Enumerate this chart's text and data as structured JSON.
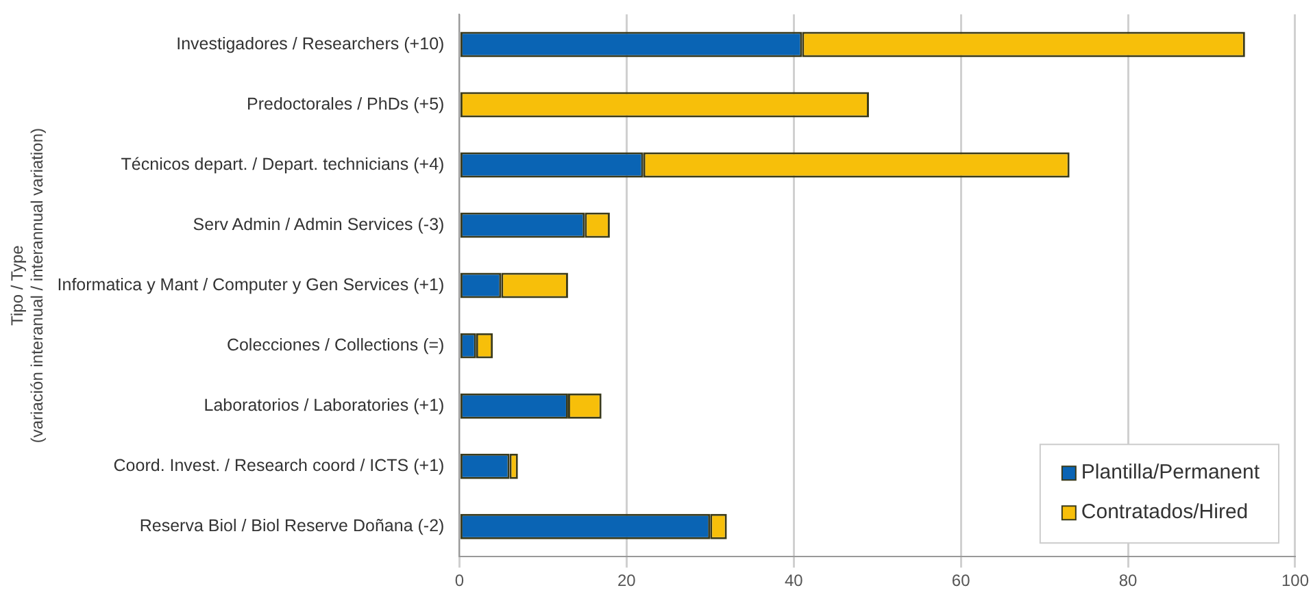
{
  "chart_data": {
    "type": "bar",
    "orientation": "horizontal",
    "stacked": true,
    "ylabel": "Tipo / Type\n(variación interanual / interannual variation)",
    "categories": [
      "Investigadores / Researchers (+10)",
      "Predoctorales / PhDs (+5)",
      "Técnicos depart. / Depart. technicians (+4)",
      "Serv Admin / Admin Services (-3)",
      "Informatica y Mant / Computer y Gen Services (+1)",
      "Colecciones / Collections (=)",
      "Laboratorios / Laboratories (+1)",
      "Coord. Invest. / Research coord / ICTS (+1)",
      "Reserva Biol / Biol Reserve Doñana (-2)"
    ],
    "series": [
      {
        "name": "Plantilla/Permanent",
        "color": "#0a64b4",
        "values": [
          41,
          0,
          22,
          15,
          5,
          2,
          13,
          6,
          30
        ]
      },
      {
        "name": "Contratados/Hired",
        "color": "#f7bf0a",
        "values": [
          53,
          49,
          51,
          3,
          8,
          2,
          4,
          1,
          2
        ]
      }
    ],
    "xlim": [
      0,
      100
    ],
    "xticks": [
      0,
      20,
      40,
      60,
      80,
      100
    ],
    "grid": "x",
    "legend": "bottom right"
  }
}
